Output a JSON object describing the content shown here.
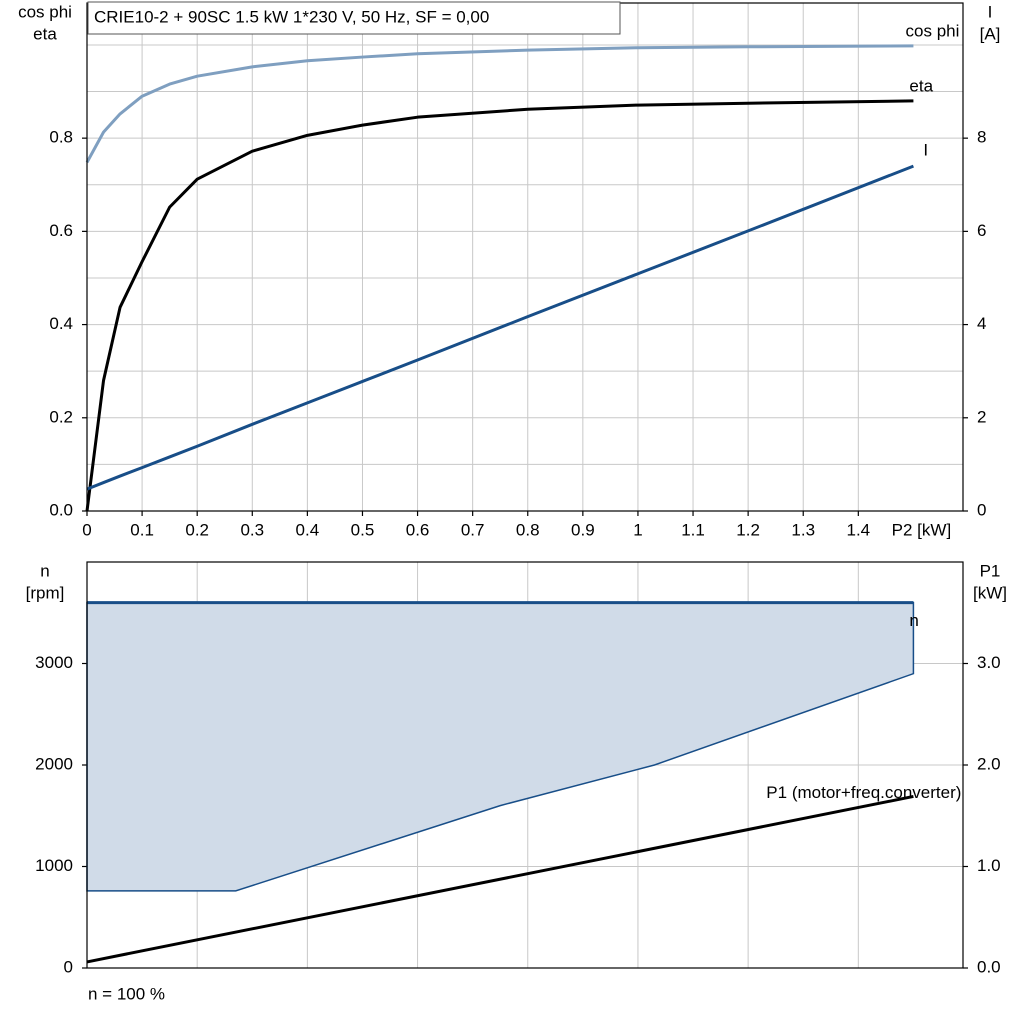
{
  "chart_data": [
    {
      "type": "line",
      "title": "CRIE10-2 + 90SC   1.5 kW   1*230 V, 50 Hz, SF = 0,00",
      "xlabel": "P2 [kW]",
      "ylabel": [
        "cos phi",
        "eta"
      ],
      "y2label": [
        "I",
        "[A]"
      ],
      "x": [
        0,
        0.03,
        0.06,
        0.1,
        0.15,
        0.2,
        0.3,
        0.4,
        0.5,
        0.6,
        0.8,
        1.0,
        1.2,
        1.5
      ],
      "xlim": [
        0,
        1.59
      ],
      "xticks": [
        0,
        0.1,
        0.2,
        0.3,
        0.4,
        0.5,
        0.6,
        0.7,
        0.8,
        0.9,
        1.0,
        1.1,
        1.2,
        1.3,
        1.4
      ],
      "ylim": [
        0,
        1.09
      ],
      "yticks": [
        {
          "value": 0,
          "label": "0.0"
        },
        0.2,
        0.4,
        0.6,
        0.8
      ],
      "y2lim": [
        0,
        10.9
      ],
      "y2ticks": [
        0,
        2,
        4,
        6,
        8
      ],
      "grid": true,
      "minor_grid": true,
      "series": [
        {
          "name": "cos phi",
          "color": "#7f9fc0",
          "values": [
            0.748,
            0.813,
            0.852,
            0.89,
            0.916,
            0.933,
            0.953,
            0.966,
            0.974,
            0.981,
            0.989,
            0.994,
            0.996,
            0.998
          ]
        },
        {
          "name": "eta",
          "color": "#000000",
          "values": [
            0,
            0.28,
            0.437,
            0.535,
            0.652,
            0.712,
            0.772,
            0.806,
            0.828,
            0.845,
            0.862,
            0.871,
            0.875,
            0.88
          ]
        },
        {
          "name": "I",
          "color": "#184e88",
          "axis": "y2",
          "values": [
            0.47,
            0.61,
            0.75,
            0.93,
            1.16,
            1.39,
            1.86,
            2.32,
            2.78,
            3.24,
            4.17,
            5.09,
            6.01,
            7.4
          ]
        }
      ]
    },
    {
      "type": "area",
      "ylabel": [
        "n",
        "[rpm]"
      ],
      "y2label": [
        "P1",
        "[kW]"
      ],
      "note": "n = 100 %",
      "xlim": [
        0,
        1.59
      ],
      "ylim": [
        0,
        4000
      ],
      "yticks": [
        0,
        1000,
        2000,
        3000
      ],
      "y2lim": [
        0,
        4
      ],
      "y2ticks": [
        {
          "value": 0,
          "label": "0.0"
        },
        {
          "value": 1,
          "label": "1.0"
        },
        {
          "value": 2,
          "label": "2.0"
        },
        {
          "value": 3,
          "label": "3.0"
        }
      ],
      "grid": true,
      "range": {
        "color": "#d0dbe8",
        "x": [
          0,
          0.27,
          0.75,
          1.03,
          1.5
        ],
        "values": [
          760,
          760,
          1600,
          2000,
          2900
        ]
      },
      "series": [
        {
          "name": "n",
          "color": "#184e88",
          "x": [
            0,
            1.5
          ],
          "values": [
            3600,
            3600
          ]
        },
        {
          "name": "P1 (motor+freq.converter)",
          "color": "#000000",
          "axis": "y2",
          "x": [
            0,
            1.5
          ],
          "values": [
            0.06,
            1.69
          ]
        }
      ]
    }
  ]
}
